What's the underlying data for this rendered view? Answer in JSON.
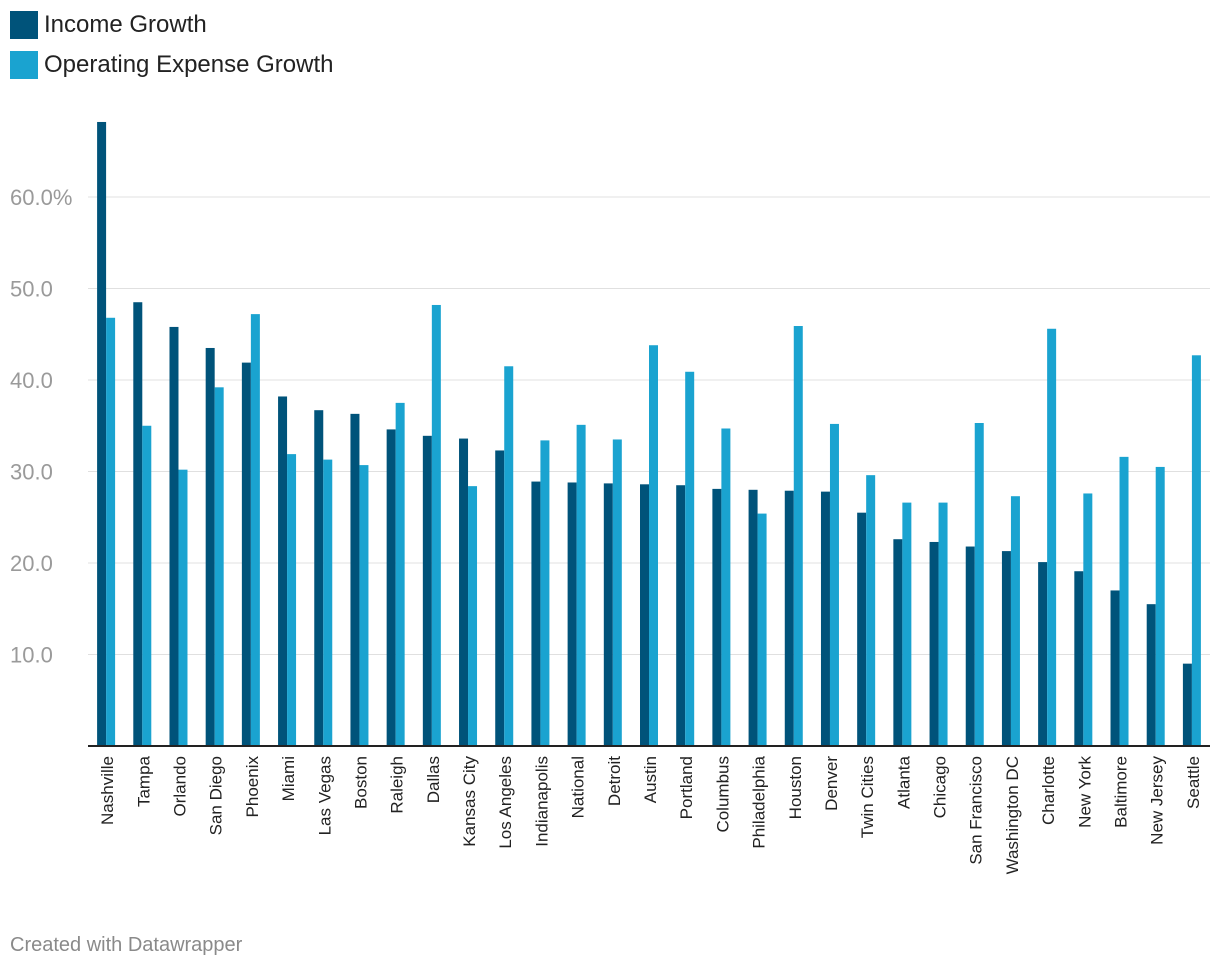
{
  "colors": {
    "income": "#00537a",
    "expense": "#1aa3d0",
    "grid": "#e0e0e0",
    "axis": "#222222",
    "tick_label": "#9a9a9a"
  },
  "legend": {
    "income_label": "Income Growth",
    "expense_label": "Operating Expense Growth"
  },
  "footer": "Created with Datawrapper",
  "chart_data": {
    "type": "bar",
    "title": "",
    "xlabel": "",
    "ylabel": "",
    "ylim": [
      0,
      68
    ],
    "yticks": [
      10,
      20,
      30,
      40,
      50,
      60
    ],
    "ytick_labels": [
      "10.0",
      "20.0",
      "30.0",
      "40.0",
      "50.0",
      "60.0%"
    ],
    "categories": [
      "Nashville",
      "Tampa",
      "Orlando",
      "San Diego",
      "Phoenix",
      "Miami",
      "Las Vegas",
      "Boston",
      "Raleigh",
      "Dallas",
      "Kansas City",
      "Los Angeles",
      "Indianapolis",
      "National",
      "Detroit",
      "Austin",
      "Portland",
      "Columbus",
      "Philadelphia",
      "Houston",
      "Denver",
      "Twin Cities",
      "Atlanta",
      "Chicago",
      "San Francisco",
      "Washington DC",
      "Charlotte",
      "New York",
      "Baltimore",
      "New Jersey",
      "Seattle"
    ],
    "series": [
      {
        "name": "Income Growth",
        "values": [
          68.2,
          48.5,
          45.8,
          43.5,
          41.9,
          38.2,
          36.7,
          36.3,
          34.6,
          33.9,
          33.6,
          32.3,
          28.9,
          28.8,
          28.7,
          28.6,
          28.5,
          28.1,
          28.0,
          27.9,
          27.8,
          25.5,
          22.6,
          22.3,
          21.8,
          21.3,
          20.1,
          19.1,
          17.0,
          15.5,
          9.0
        ]
      },
      {
        "name": "Operating Expense Growth",
        "values": [
          46.8,
          35.0,
          30.2,
          39.2,
          47.2,
          31.9,
          31.3,
          30.7,
          37.5,
          48.2,
          28.4,
          41.5,
          33.4,
          35.1,
          33.5,
          43.8,
          40.9,
          34.7,
          25.4,
          45.9,
          35.2,
          29.6,
          26.6,
          26.6,
          35.3,
          27.3,
          45.6,
          27.6,
          31.6,
          30.5,
          42.7
        ]
      }
    ]
  }
}
